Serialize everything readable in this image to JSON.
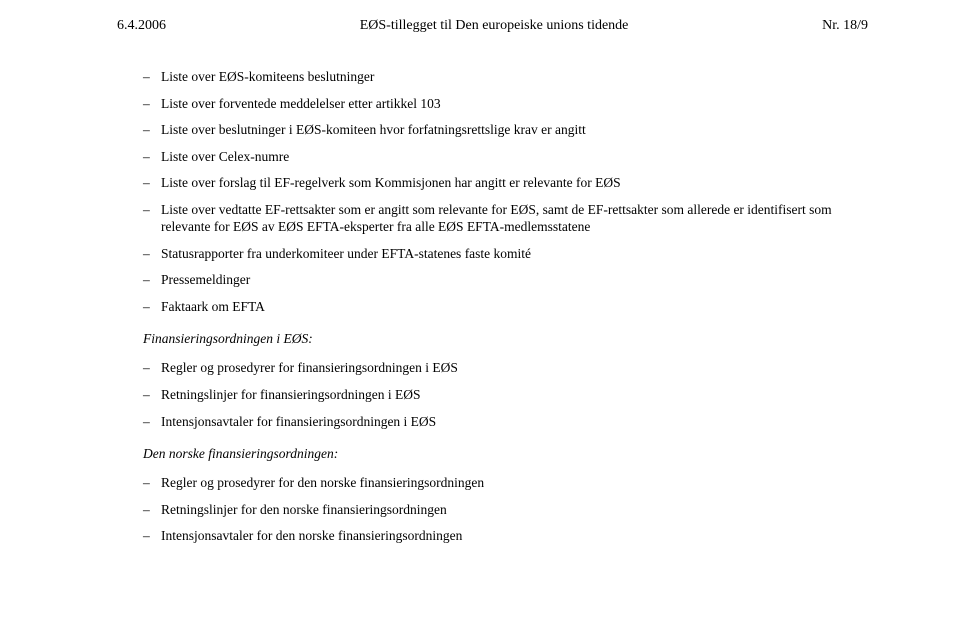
{
  "header": {
    "left": "6.4.2006",
    "center": "EØS-tillegget til Den europeiske unions tidende",
    "right": "Nr. 18/9"
  },
  "main_list": [
    "Liste over EØS-komiteens beslutninger",
    "Liste over forventede meddelelser etter artikkel 103",
    "Liste over beslutninger i EØS-komiteen hvor forfatningsrettslige krav er angitt",
    "Liste over Celex-numre",
    "Liste over forslag til EF-regelverk som Kommisjonen har angitt er relevante for EØS",
    "Liste over vedtatte EF-rettsakter som er angitt som relevante for EØS, samt de EF-rettsakter som allerede er identifisert som relevante for EØS av EØS EFTA-eksperter fra alle EØS EFTA-medlemsstatene",
    "Statusrapporter fra underkomiteer under EFTA-statenes faste komité",
    "Pressemeldinger",
    "Faktaark om EFTA"
  ],
  "section_eos": {
    "heading": "Finansieringsordningen i EØS:",
    "items": [
      "Regler og prosedyrer for finansieringsordningen i EØS",
      "Retningslinjer for finansieringsordningen i EØS",
      "Intensjonsavtaler for finansieringsordningen i EØS"
    ]
  },
  "section_norsk": {
    "heading": "Den norske finansieringsordningen:",
    "items": [
      "Regler og prosedyrer for den norske finansieringsordningen",
      "Retningslinjer for den norske finansieringsordningen",
      "Intensjonsavtaler for den norske finansieringsordningen"
    ]
  }
}
